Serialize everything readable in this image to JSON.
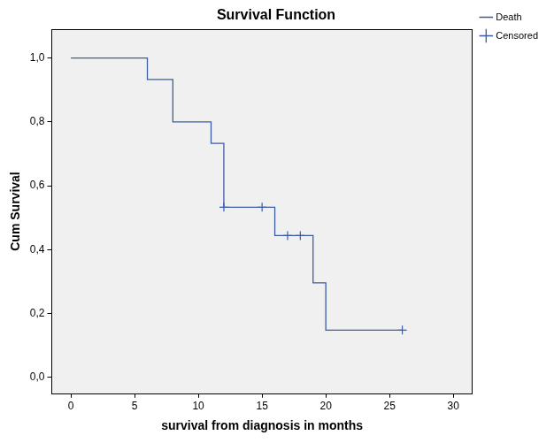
{
  "chart_data": {
    "type": "line",
    "title": "Survival Function",
    "x_label": "survival from diagnosis in months",
    "y_label": "Cum Survival",
    "series": [
      {
        "name": "Death",
        "color": "#3b5ba5",
        "line_style": "step",
        "marker": "none",
        "x": [
          0,
          6,
          8,
          11,
          12,
          16,
          19,
          20,
          26
        ],
        "values": [
          1.0,
          0.933,
          0.8,
          0.733,
          0.533,
          0.444,
          0.296,
          0.148,
          0.148
        ]
      },
      {
        "name": "Censored",
        "color": "#3b5ba5",
        "line_style": "none",
        "marker": "cross",
        "x": [
          12,
          15,
          17,
          18,
          26
        ],
        "values": [
          0.533,
          0.533,
          0.444,
          0.444,
          0.148
        ]
      }
    ],
    "xlim": [
      -1.5,
      31.5
    ],
    "ylim": [
      -0.05,
      1.09
    ],
    "xticks": [
      0,
      5,
      10,
      15,
      20,
      25,
      30
    ],
    "yticks": [
      {
        "value": 0,
        "label": "0,0"
      },
      {
        "value": 0.2,
        "label": "0,2"
      },
      {
        "value": 0.4,
        "label": "0,4"
      },
      {
        "value": 0.6,
        "label": "0,6"
      },
      {
        "value": 0.8,
        "label": "0,8"
      },
      {
        "value": 1.0,
        "label": "1,0"
      }
    ],
    "grid": false,
    "legend": "top right"
  }
}
